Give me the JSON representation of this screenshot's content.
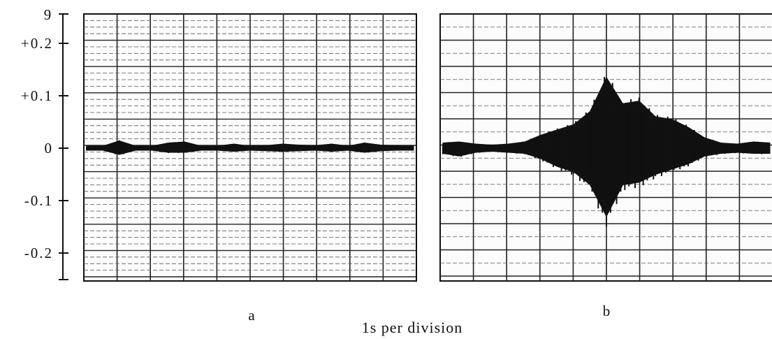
{
  "chart_data": {
    "type": "line",
    "xlabel": "1s per division",
    "ylabel": "",
    "ylim": [
      -0.25,
      0.25
    ],
    "y_axis": {
      "top_label": "9",
      "ticks": [
        {
          "label": "+0.2",
          "value": 0.2
        },
        {
          "label": "+0.1",
          "value": 0.1
        },
        {
          "label": "0",
          "value": 0.0
        },
        {
          "label": "-0.1",
          "value": -0.1
        },
        {
          "label": "-0.2",
          "value": -0.2
        }
      ]
    },
    "grid": true,
    "panels": [
      {
        "label": "a",
        "x_divisions": 10,
        "seconds_per_division": 1,
        "x": [
          0,
          0.5,
          1,
          1.5,
          2,
          2.5,
          3,
          3.5,
          4,
          4.5,
          5,
          5.5,
          6,
          6.5,
          7,
          7.5,
          8,
          8.5,
          9,
          9.5,
          10
        ],
        "upper_envelope": [
          0.004,
          0.004,
          0.014,
          0.004,
          0.004,
          0.01,
          0.012,
          0.004,
          0.004,
          0.008,
          0.004,
          0.005,
          0.008,
          0.006,
          0.005,
          0.008,
          0.004,
          0.01,
          0.006,
          0.005,
          0.004
        ],
        "lower_envelope": [
          -0.004,
          -0.004,
          -0.012,
          -0.004,
          -0.004,
          -0.008,
          -0.008,
          -0.004,
          -0.004,
          -0.006,
          -0.004,
          -0.005,
          -0.006,
          -0.005,
          -0.004,
          -0.006,
          -0.004,
          -0.008,
          -0.005,
          -0.004,
          -0.004
        ]
      },
      {
        "label": "b",
        "x_divisions": 10,
        "seconds_per_division": 1,
        "x": [
          0,
          0.5,
          1,
          1.5,
          2,
          2.5,
          3,
          3.5,
          4,
          4.5,
          5,
          5.5,
          6,
          6.5,
          7,
          7.5,
          8,
          8.5,
          9,
          9.5,
          10
        ],
        "upper_envelope": [
          0.01,
          0.012,
          0.008,
          0.006,
          0.008,
          0.012,
          0.025,
          0.035,
          0.045,
          0.07,
          0.135,
          0.085,
          0.09,
          0.06,
          0.055,
          0.04,
          0.02,
          0.01,
          0.008,
          0.012,
          0.01
        ],
        "lower_envelope": [
          -0.01,
          -0.015,
          -0.008,
          -0.006,
          -0.008,
          -0.01,
          -0.02,
          -0.035,
          -0.045,
          -0.07,
          -0.13,
          -0.07,
          -0.065,
          -0.05,
          -0.04,
          -0.03,
          -0.015,
          -0.01,
          -0.008,
          -0.01,
          -0.01
        ]
      }
    ]
  }
}
